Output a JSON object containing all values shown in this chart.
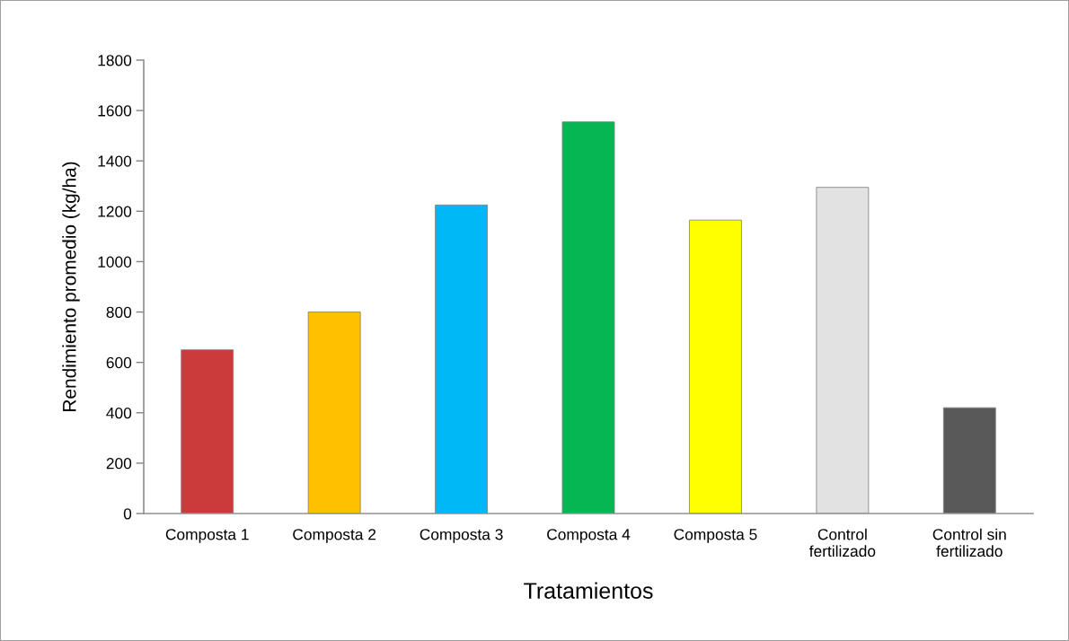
{
  "chart_data": {
    "type": "bar",
    "xlabel": "Tratamientos",
    "ylabel": "Rendimiento promedio (kg/ha)",
    "categories": [
      "Composta 1",
      "Composta 2",
      "Composta 3",
      "Composta 4",
      "Composta 5",
      "Control\nfertilizado",
      "Control sin\nfertilizado"
    ],
    "values": [
      650,
      800,
      1225,
      1555,
      1165,
      1295,
      420
    ],
    "colors": [
      "#cc3b3b",
      "#ffc000",
      "#00b8f5",
      "#05b652",
      "#ffff00",
      "#e2e2e2",
      "#595959"
    ],
    "ylim": [
      0,
      1800
    ],
    "yticks": [
      0,
      200,
      400,
      600,
      800,
      1000,
      1200,
      1400,
      1600,
      1800
    ],
    "grid": false,
    "legend": false
  }
}
